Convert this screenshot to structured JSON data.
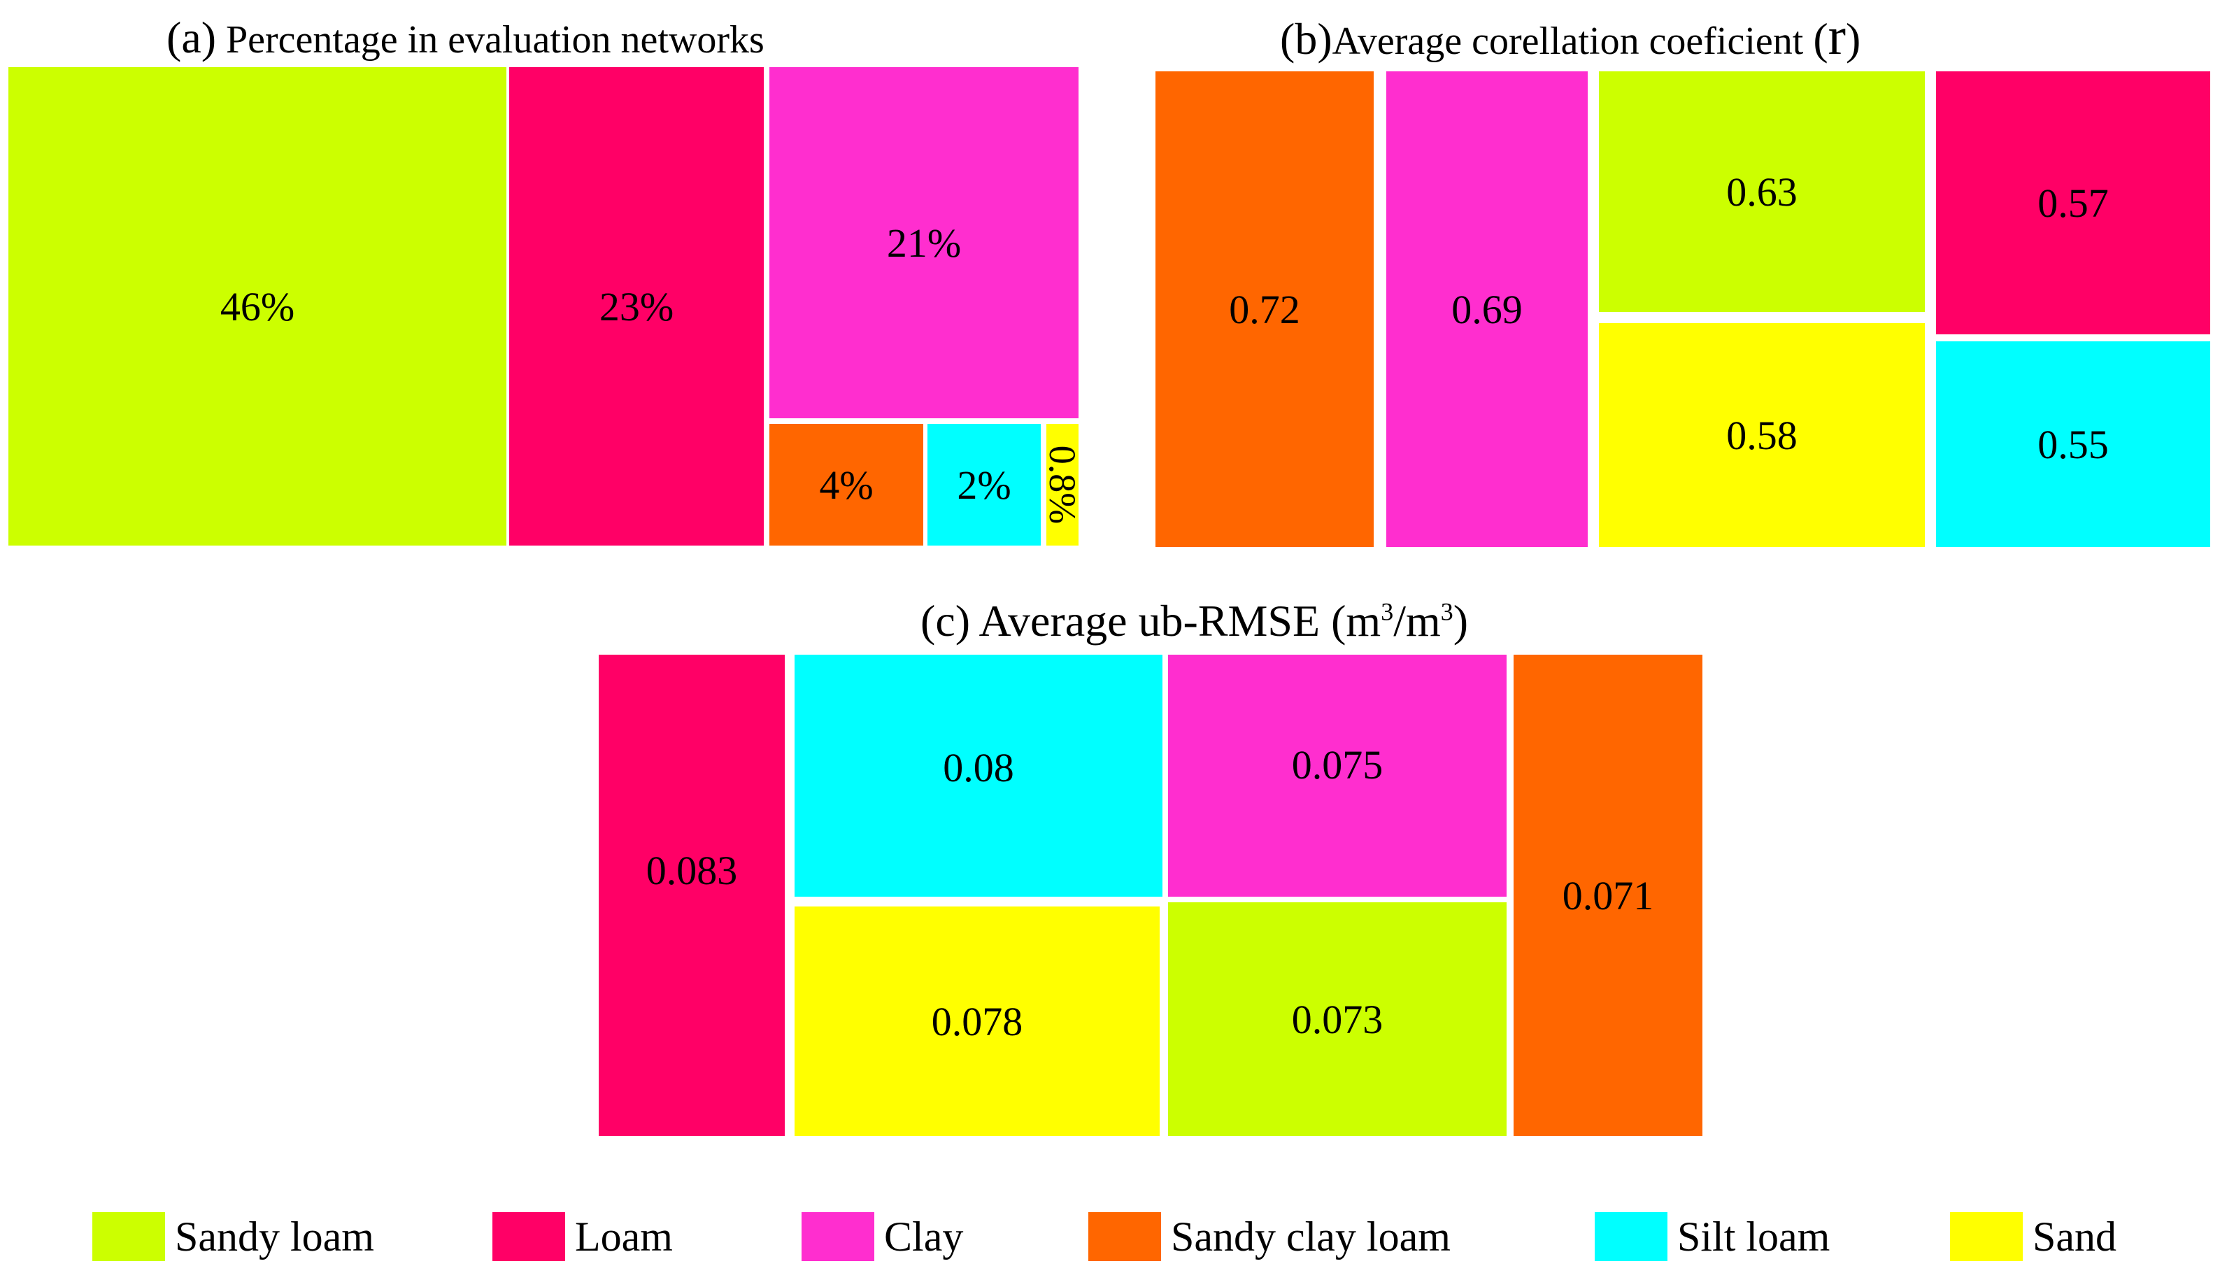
{
  "panels": [
    {
      "label": "(a)",
      "title": "Percentage in evaluation networks",
      "tiles": [
        {
          "category": "Sandy loam",
          "text": "46%"
        },
        {
          "category": "Loam",
          "text": "23%"
        },
        {
          "category": "Clay",
          "text": "21%"
        },
        {
          "category": "Sandy clay loam",
          "text": "4%"
        },
        {
          "category": "Silt loam",
          "text": "2%"
        },
        {
          "category": "Sand",
          "text": "0.8%"
        }
      ]
    },
    {
      "label": "(b)",
      "title": "Average corellation coeficient",
      "title_symbol_open": "(",
      "title_symbol": "r",
      "title_symbol_close": ")",
      "tiles": [
        {
          "category": "Sandy clay loam",
          "text": "0.72"
        },
        {
          "category": "Clay",
          "text": "0.69"
        },
        {
          "category": "Sandy loam",
          "text": "0.63"
        },
        {
          "category": "Sand",
          "text": "0.58"
        },
        {
          "category": "Loam",
          "text": "0.57"
        },
        {
          "category": "Silt loam",
          "text": "0.55"
        }
      ]
    },
    {
      "label": "(c)",
      "title": "Average ub-RMSE",
      "title_unit_a": "(m",
      "title_unit_exp1": "3",
      "title_unit_b": "/m",
      "title_unit_exp2": "3",
      "title_unit_c": ")",
      "tiles": [
        {
          "category": "Loam",
          "text": "0.083"
        },
        {
          "category": "Silt loam",
          "text": "0.08"
        },
        {
          "category": "Sand",
          "text": "0.078"
        },
        {
          "category": "Clay",
          "text": "0.075"
        },
        {
          "category": "Sandy loam",
          "text": "0.073"
        },
        {
          "category": "Sandy clay loam",
          "text": "0.071"
        }
      ]
    }
  ],
  "legend": [
    {
      "label": "Sandy loam",
      "color": "#CCFF00"
    },
    {
      "label": "Loam",
      "color": "#FF0066"
    },
    {
      "label": "Clay",
      "color": "#FF2ECF"
    },
    {
      "label": "Sandy clay loam",
      "color": "#FF6600"
    },
    {
      "label": "Silt loam",
      "color": "#00FFFF"
    },
    {
      "label": "Sand",
      "color": "#FFFF00"
    }
  ],
  "chart_data": [
    {
      "type": "treemap",
      "title": "(a) Percentage in evaluation networks",
      "categories": [
        "Sandy loam",
        "Loam",
        "Clay",
        "Sandy clay loam",
        "Silt loam",
        "Sand"
      ],
      "values": [
        46,
        23,
        21,
        4,
        2,
        0.8
      ],
      "unit": "%"
    },
    {
      "type": "treemap",
      "title": "(b) Average corellation coeficient (r)",
      "categories": [
        "Sandy clay loam",
        "Clay",
        "Sandy loam",
        "Sand",
        "Loam",
        "Silt loam"
      ],
      "values": [
        0.72,
        0.69,
        0.63,
        0.58,
        0.57,
        0.55
      ]
    },
    {
      "type": "treemap",
      "title": "(c) Average ub-RMSE (m3/m3)",
      "categories": [
        "Loam",
        "Silt loam",
        "Sand",
        "Clay",
        "Sandy loam",
        "Sandy clay loam"
      ],
      "values": [
        0.083,
        0.08,
        0.078,
        0.075,
        0.073,
        0.071
      ]
    }
  ]
}
